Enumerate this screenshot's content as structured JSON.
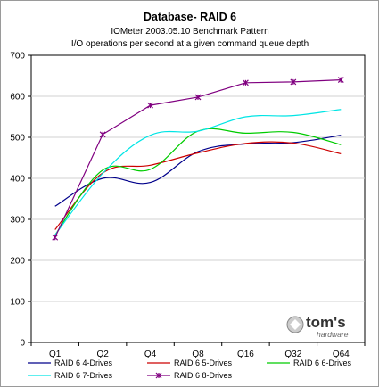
{
  "chart_data": {
    "type": "line",
    "title": "Database- RAID 6",
    "subtitle_lines": [
      "IOMeter 2003.05.10 Benchmark Pattern",
      "I/O operations per second at a given command queue depth"
    ],
    "xlabel": "",
    "ylabel": "",
    "categories": [
      "Q1",
      "Q2",
      "Q4",
      "Q8",
      "Q16",
      "Q32",
      "Q64"
    ],
    "ylim": [
      0,
      700
    ],
    "yticks": [
      0,
      100,
      200,
      300,
      400,
      500,
      600,
      700
    ],
    "grid": true,
    "legend_position": "bottom",
    "series": [
      {
        "name": "RAID 6 4-Drives",
        "color": "#00008b",
        "marker": "none",
        "values": [
          332,
          400,
          390,
          465,
          484,
          487,
          505
        ]
      },
      {
        "name": "RAID 6 5-Drives",
        "color": "#cc0000",
        "marker": "none",
        "values": [
          275,
          413,
          432,
          462,
          485,
          486,
          460
        ]
      },
      {
        "name": "RAID 6 6-Drives",
        "color": "#00cc00",
        "marker": "none",
        "values": [
          262,
          420,
          422,
          515,
          510,
          512,
          482
        ]
      },
      {
        "name": "RAID 6 7-Drives",
        "color": "#00e5e5",
        "marker": "none",
        "values": [
          262,
          412,
          505,
          515,
          550,
          553,
          568
        ]
      },
      {
        "name": "RAID 6 8-Drives",
        "color": "#800080",
        "marker": "star",
        "values": [
          256,
          507,
          578,
          598,
          633,
          635,
          640
        ]
      }
    ]
  },
  "branding": {
    "name": "tom's",
    "sub": "hardware"
  }
}
